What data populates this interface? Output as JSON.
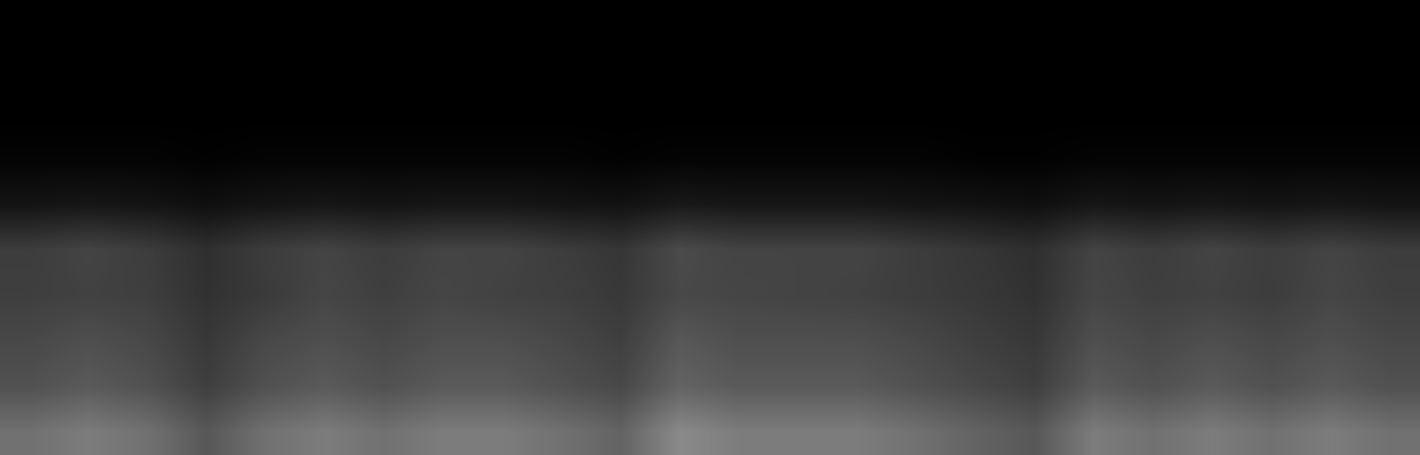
{
  "chart_data": {
    "type": "heatmap",
    "tick_labels": false,
    "cells": [
      [
        0,
        0,
        0,
        0,
        0,
        0,
        0,
        0,
        0,
        0,
        0,
        0,
        0,
        0,
        0,
        0,
        0,
        0,
        0,
        0,
        0,
        0,
        0,
        0
      ],
      [
        0,
        0,
        0,
        0,
        0,
        0,
        0,
        0,
        0,
        0,
        0,
        0,
        0,
        0,
        0,
        0,
        0,
        0,
        0,
        0,
        0,
        0,
        0,
        0
      ],
      [
        0,
        0,
        0,
        0,
        0,
        0,
        0,
        0,
        0,
        0,
        0,
        0,
        0,
        0,
        0,
        0,
        0,
        0,
        0,
        0,
        0,
        0,
        0,
        0
      ],
      [
        2,
        2,
        2,
        1,
        2,
        2,
        2,
        2,
        2,
        2,
        1,
        2,
        2,
        2,
        2,
        2,
        1,
        1,
        2,
        2,
        2,
        2,
        2,
        2
      ],
      [
        9,
        10,
        9,
        7,
        9,
        10,
        9,
        10,
        10,
        9,
        8,
        11,
        10,
        10,
        10,
        9,
        8,
        7,
        10,
        9,
        10,
        9,
        10,
        9
      ],
      [
        27,
        30,
        27,
        21,
        27,
        30,
        27,
        30,
        30,
        27,
        24,
        33,
        30,
        30,
        30,
        27,
        24,
        21,
        30,
        27,
        30,
        27,
        30,
        27
      ],
      [
        28,
        29,
        28,
        22,
        26,
        31,
        28,
        31,
        29,
        28,
        25,
        32,
        31,
        30,
        29,
        27,
        25,
        22,
        31,
        28,
        29,
        27,
        31,
        28
      ],
      [
        32,
        35,
        32,
        25,
        32,
        35,
        32,
        35,
        35,
        32,
        28,
        39,
        35,
        35,
        35,
        32,
        28,
        25,
        35,
        32,
        35,
        32,
        35,
        32
      ],
      [
        36,
        40,
        36,
        28,
        36,
        40,
        36,
        40,
        40,
        36,
        32,
        44,
        40,
        40,
        40,
        36,
        32,
        28,
        40,
        36,
        40,
        36,
        40,
        36
      ],
      [
        50,
        55,
        50,
        39,
        50,
        55,
        50,
        55,
        55,
        50,
        44,
        61,
        55,
        55,
        55,
        50,
        44,
        39,
        55,
        50,
        55,
        50,
        55,
        50
      ]
    ]
  }
}
